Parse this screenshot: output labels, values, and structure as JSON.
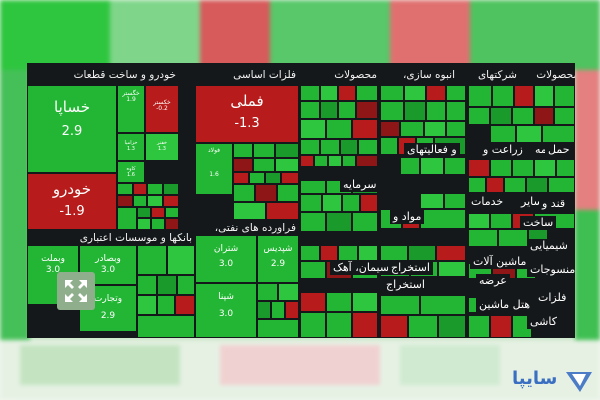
{
  "colors": {
    "up": "#22b634",
    "down": "#b71b1b",
    "frame": "#15181a",
    "logo": "#3a6fc1"
  },
  "sections": [
    {
      "key": "khodro",
      "header": "خودرو و ساخت قطعات"
    },
    {
      "key": "felezat",
      "header": "فلزات اساسی"
    },
    {
      "key": "mahsoolat1",
      "header": "محصولات"
    },
    {
      "key": "anbooh",
      "header": "انبوه سازی،"
    },
    {
      "key": "sherkat",
      "header": "شرکتهای"
    },
    {
      "key": "mahsoolat2",
      "header": "محصولات"
    },
    {
      "key": "banks",
      "header": "بانکها و موسسات اعتباری"
    },
    {
      "key": "faravarde",
      "header": "فراورده های نفتی،"
    }
  ],
  "overlay_labels": {
    "sarmaye": "سرمایه",
    "mavad": "مواد و",
    "siman": "سیمان، آهک",
    "estekhraj1": "استخراج",
    "estekhraj2": "استخراج",
    "ezafe": "عرضه",
    "hotel": "هتل ماشین",
    "zeraat": "زراعت و",
    "bime": "بیمه",
    "haml": "حمل",
    "faaliat": "و فعالیتهای",
    "khadamat": "خدمات",
    "sayer": "سایر",
    "qand": "قند و",
    "ostekhr": "استخراج",
    "sakht": "ساخت",
    "mashin": "ماشین آلات",
    "shimi": "شیمیایی",
    "nasaji": "منسوجات",
    "kashi": "کاشی",
    "felezat2": "فلزات",
    "satyr": "سایر"
  },
  "tiles": {
    "khapa": {
      "name": "خساپا",
      "value": "2.9"
    },
    "khodro": {
      "name": "خودرو",
      "value": "-1.9"
    },
    "fameli": {
      "name": "فملی",
      "value": "-1.3"
    },
    "foolad": {
      "name": "فولاد",
      "value": "1.6"
    },
    "shatran": {
      "name": "شتران",
      "value": "3.0"
    },
    "shepdis": {
      "name": "شپدیس",
      "value": "2.9"
    },
    "shepna": {
      "name": "شپنا",
      "value": "3.0"
    },
    "vbmellat": {
      "name": "وبملت",
      "value": "3.0"
    },
    "vbsader": {
      "name": "وبصادر",
      "value": "3.0"
    },
    "vtejarat": {
      "name": "وتجارت",
      "value": "2.9"
    },
    "khakestar": {
      "name": "خکستر",
      "value": "-0.2"
    },
    "khzamia": {
      "name": "خزامیا",
      "value": "1.3"
    },
    "khahro": {
      "name": "خفنر",
      "value": "1.3"
    },
    "kave": {
      "name": "کاوه",
      "value": "1.6"
    },
    "khegostar": {
      "name": "خگستر",
      "value": "1.9"
    }
  },
  "icons": {
    "collapse": "collapse-arrows-icon",
    "logo": "saipa-logo-icon"
  },
  "logo_text": "سایپا"
}
